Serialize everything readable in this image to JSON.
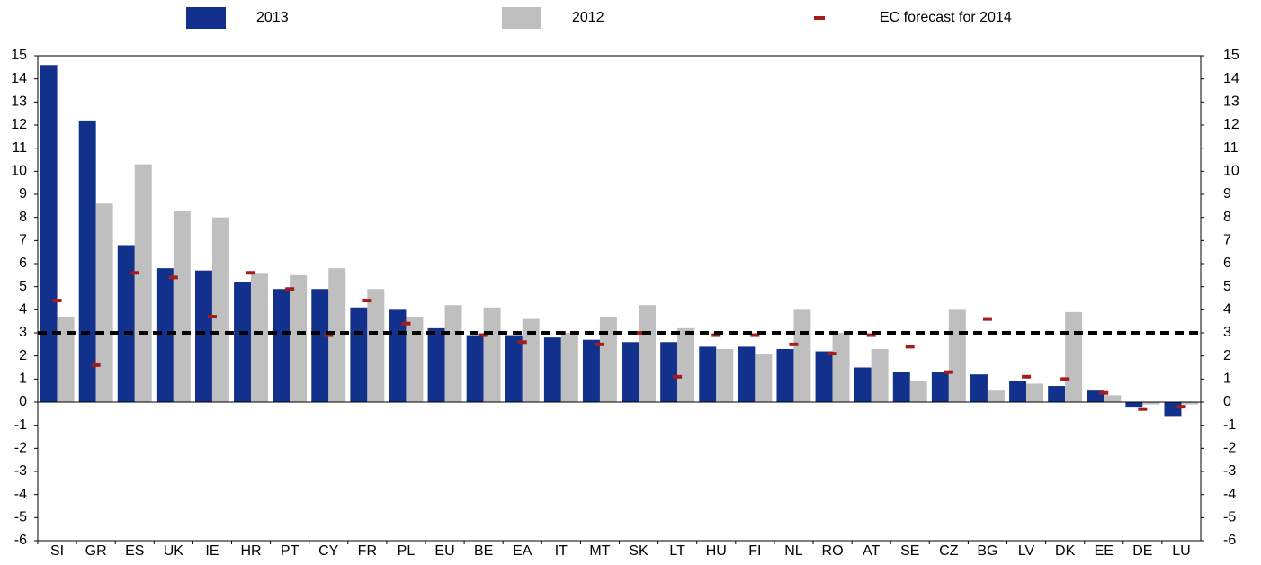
{
  "chart_data": {
    "type": "bar",
    "categories": [
      "SI",
      "GR",
      "ES",
      "UK",
      "IE",
      "HR",
      "PT",
      "CY",
      "FR",
      "PL",
      "EU",
      "BE",
      "EA",
      "IT",
      "MT",
      "SK",
      "LT",
      "HU",
      "FI",
      "NL",
      "RO",
      "AT",
      "SE",
      "CZ",
      "BG",
      "LV",
      "DK",
      "EE",
      "DE",
      "LU"
    ],
    "series": [
      {
        "name": "2013",
        "color": "#12318c",
        "values": [
          14.6,
          12.2,
          6.8,
          5.8,
          5.7,
          5.2,
          4.9,
          4.9,
          4.1,
          4.0,
          3.2,
          2.9,
          2.9,
          2.8,
          2.7,
          2.6,
          2.6,
          2.4,
          2.4,
          2.3,
          2.2,
          1.5,
          1.3,
          1.3,
          1.2,
          0.9,
          0.7,
          0.5,
          -0.2,
          -0.6
        ]
      },
      {
        "name": "2012",
        "color": "#bfbfbf",
        "values": [
          3.7,
          8.6,
          10.3,
          8.3,
          8.0,
          5.6,
          5.5,
          5.8,
          4.9,
          3.7,
          4.2,
          4.1,
          3.6,
          3.0,
          3.7,
          4.2,
          3.2,
          2.3,
          2.1,
          4.0,
          3.0,
          2.3,
          0.9,
          4.0,
          0.5,
          0.8,
          3.9,
          0.3,
          -0.1,
          -0.1
        ]
      },
      {
        "name": "EC forecast for 2014",
        "color": "#a61c1c",
        "marker": "dash",
        "values": [
          4.4,
          1.6,
          5.6,
          5.4,
          3.7,
          5.6,
          4.9,
          2.9,
          4.4,
          3.4,
          3.0,
          2.9,
          2.6,
          3.0,
          2.5,
          3.0,
          1.1,
          2.9,
          2.9,
          2.5,
          2.1,
          2.9,
          2.4,
          1.3,
          3.6,
          1.1,
          1.0,
          0.4,
          -0.3,
          -0.2
        ]
      }
    ],
    "reference_line": 3,
    "ylim": [
      -6,
      15
    ],
    "yticks": [
      -6,
      -5,
      -4,
      -3,
      -2,
      -1,
      0,
      1,
      2,
      3,
      4,
      5,
      6,
      7,
      8,
      9,
      10,
      11,
      12,
      13,
      14,
      15
    ]
  }
}
